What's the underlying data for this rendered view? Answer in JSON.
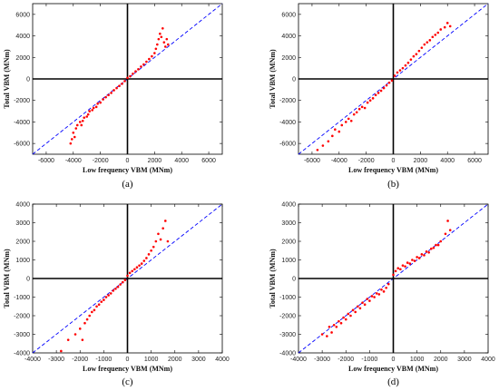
{
  "chart_data": [
    {
      "type": "scatter",
      "caption": "(a)",
      "xlabel": "Low frequency VBM (MNm)",
      "ylabel": "Total VBM (MNm)",
      "xlim": [
        -7000,
        7000
      ],
      "ylim": [
        -7000,
        7000
      ],
      "xticks": [
        -6000,
        -4000,
        -2000,
        0,
        2000,
        4000,
        6000
      ],
      "yticks": [
        -6000,
        -4000,
        -2000,
        0,
        2000,
        4000,
        6000
      ],
      "marker_color": "#ff0000",
      "reference_line": {
        "style": "dashed",
        "color": "#0000ff",
        "slope": 1
      },
      "axes_cross_color": "#000000",
      "series": [
        {
          "points": [
            [
              -4200,
              -6000
            ],
            [
              -4100,
              -5600
            ],
            [
              -4000,
              -5000
            ],
            [
              -3900,
              -5400
            ],
            [
              -3800,
              -4600
            ],
            [
              -3700,
              -4300
            ],
            [
              -3500,
              -4000
            ],
            [
              -3400,
              -4300
            ],
            [
              -3300,
              -3900
            ],
            [
              -3200,
              -3600
            ],
            [
              -3000,
              -3500
            ],
            [
              -2900,
              -3300
            ],
            [
              -2800,
              -3000
            ],
            [
              -2600,
              -2900
            ],
            [
              -2500,
              -2700
            ],
            [
              -2300,
              -2600
            ],
            [
              -2200,
              -2300
            ],
            [
              -2000,
              -2200
            ],
            [
              -1800,
              -1900
            ],
            [
              -1600,
              -1700
            ],
            [
              -1400,
              -1500
            ],
            [
              -1200,
              -1300
            ],
            [
              -1000,
              -1050
            ],
            [
              -800,
              -850
            ],
            [
              -600,
              -650
            ],
            [
              -400,
              -450
            ],
            [
              -200,
              -200
            ],
            [
              0,
              100
            ],
            [
              200,
              250
            ],
            [
              400,
              480
            ],
            [
              600,
              700
            ],
            [
              800,
              900
            ],
            [
              1000,
              1150
            ],
            [
              1200,
              1350
            ],
            [
              1400,
              1600
            ],
            [
              1600,
              1850
            ],
            [
              1800,
              2100
            ],
            [
              2000,
              2400
            ],
            [
              2100,
              2800
            ],
            [
              2200,
              3200
            ],
            [
              2300,
              3700
            ],
            [
              2400,
              4200
            ],
            [
              2500,
              3900
            ],
            [
              2600,
              4700
            ],
            [
              2700,
              3400
            ],
            [
              2800,
              3000
            ],
            [
              2900,
              3700
            ],
            [
              3000,
              3200
            ]
          ]
        }
      ]
    },
    {
      "type": "scatter",
      "caption": "(b)",
      "xlabel": "Low frequency VBM (MNm)",
      "ylabel": "Total VBM (MNm)",
      "xlim": [
        -7000,
        7000
      ],
      "ylim": [
        -7000,
        7000
      ],
      "xticks": [
        -6000,
        -4000,
        -2000,
        0,
        2000,
        4000,
        6000
      ],
      "yticks": [
        -6000,
        -4000,
        -2000,
        0,
        2000,
        4000,
        6000
      ],
      "marker_color": "#ff0000",
      "reference_line": {
        "style": "dashed",
        "color": "#0000ff",
        "slope": 1
      },
      "axes_cross_color": "#000000",
      "series": [
        {
          "points": [
            [
              -5600,
              -6600
            ],
            [
              -5200,
              -6200
            ],
            [
              -4800,
              -5800
            ],
            [
              -4500,
              -5300
            ],
            [
              -4300,
              -4700
            ],
            [
              -4000,
              -4900
            ],
            [
              -3800,
              -4300
            ],
            [
              -3500,
              -4000
            ],
            [
              -3300,
              -3700
            ],
            [
              -3100,
              -3900
            ],
            [
              -2900,
              -3300
            ],
            [
              -2700,
              -3100
            ],
            [
              -2500,
              -2800
            ],
            [
              -2300,
              -2600
            ],
            [
              -2100,
              -2700
            ],
            [
              -1900,
              -2200
            ],
            [
              -1700,
              -2000
            ],
            [
              -1500,
              -1800
            ],
            [
              -1300,
              -1500
            ],
            [
              -1100,
              -1300
            ],
            [
              -900,
              -1100
            ],
            [
              -700,
              -850
            ],
            [
              -500,
              -600
            ],
            [
              -300,
              -350
            ],
            [
              -100,
              -150
            ],
            [
              100,
              300
            ],
            [
              300,
              600
            ],
            [
              500,
              800
            ],
            [
              700,
              1000
            ],
            [
              900,
              1250
            ],
            [
              1100,
              1500
            ],
            [
              1300,
              1800
            ],
            [
              1500,
              2100
            ],
            [
              1700,
              2300
            ],
            [
              1900,
              2600
            ],
            [
              2100,
              2900
            ],
            [
              2300,
              3200
            ],
            [
              2500,
              3400
            ],
            [
              2700,
              3600
            ],
            [
              2900,
              3900
            ],
            [
              3100,
              4100
            ],
            [
              3300,
              4300
            ],
            [
              3500,
              4600
            ],
            [
              3800,
              4800
            ],
            [
              4000,
              5200
            ],
            [
              4200,
              4900
            ]
          ]
        }
      ]
    },
    {
      "type": "scatter",
      "caption": "(c)",
      "xlabel": "Low frequency VBM (MNm)",
      "ylabel": "Total VBM (MNm)",
      "xlim": [
        -4000,
        4000
      ],
      "ylim": [
        -4000,
        4000
      ],
      "xticks": [
        -4000,
        -3000,
        -2000,
        -1000,
        0,
        1000,
        2000,
        3000,
        4000
      ],
      "yticks": [
        -4000,
        -3000,
        -2000,
        -1000,
        0,
        1000,
        2000,
        3000,
        4000
      ],
      "marker_color": "#ff0000",
      "reference_line": {
        "style": "dashed",
        "color": "#0000ff",
        "slope": 1
      },
      "axes_cross_color": "#000000",
      "series": [
        {
          "points": [
            [
              -2800,
              -3900
            ],
            [
              -2500,
              -3300
            ],
            [
              -2200,
              -3000
            ],
            [
              -2000,
              -2700
            ],
            [
              -1900,
              -3300
            ],
            [
              -1800,
              -2400
            ],
            [
              -1700,
              -2200
            ],
            [
              -1600,
              -2000
            ],
            [
              -1500,
              -1800
            ],
            [
              -1400,
              -1700
            ],
            [
              -1300,
              -1500
            ],
            [
              -1200,
              -1400
            ],
            [
              -1100,
              -1250
            ],
            [
              -1000,
              -1150
            ],
            [
              -900,
              -1000
            ],
            [
              -800,
              -900
            ],
            [
              -700,
              -800
            ],
            [
              -600,
              -650
            ],
            [
              -500,
              -550
            ],
            [
              -400,
              -450
            ],
            [
              -300,
              -320
            ],
            [
              -200,
              -200
            ],
            [
              -100,
              -80
            ],
            [
              0,
              150
            ],
            [
              100,
              300
            ],
            [
              200,
              400
            ],
            [
              300,
              500
            ],
            [
              400,
              600
            ],
            [
              500,
              700
            ],
            [
              600,
              800
            ],
            [
              700,
              950
            ],
            [
              800,
              1100
            ],
            [
              900,
              1300
            ],
            [
              1000,
              1500
            ],
            [
              1100,
              1700
            ],
            [
              1200,
              2000
            ],
            [
              1300,
              2400
            ],
            [
              1400,
              2100
            ],
            [
              1500,
              2700
            ],
            [
              1600,
              3100
            ],
            [
              1700,
              2000
            ]
          ]
        }
      ]
    },
    {
      "type": "scatter",
      "caption": "(d)",
      "xlabel": "Low frequency VBM (MNm)",
      "ylabel": "Total VBM (MNm)",
      "xlim": [
        -4000,
        4000
      ],
      "ylim": [
        -4000,
        4000
      ],
      "xticks": [
        -4000,
        -3000,
        -2000,
        -1000,
        0,
        1000,
        2000,
        3000,
        4000
      ],
      "yticks": [
        -4000,
        -3000,
        -2000,
        -1000,
        0,
        1000,
        2000,
        3000,
        4000
      ],
      "marker_color": "#ff0000",
      "reference_line": {
        "style": "dashed",
        "color": "#0000ff",
        "slope": 1
      },
      "axes_cross_color": "#000000",
      "series": [
        {
          "points": [
            [
              -3000,
              -3000
            ],
            [
              -2800,
              -3100
            ],
            [
              -2700,
              -2600
            ],
            [
              -2600,
              -2900
            ],
            [
              -2500,
              -2500
            ],
            [
              -2400,
              -2600
            ],
            [
              -2300,
              -2300
            ],
            [
              -2200,
              -2400
            ],
            [
              -2100,
              -2100
            ],
            [
              -2000,
              -2200
            ],
            [
              -1900,
              -1900
            ],
            [
              -1800,
              -2000
            ],
            [
              -1700,
              -1700
            ],
            [
              -1600,
              -1800
            ],
            [
              -1500,
              -1500
            ],
            [
              -1400,
              -1600
            ],
            [
              -1300,
              -1300
            ],
            [
              -1200,
              -1400
            ],
            [
              -1100,
              -1100
            ],
            [
              -1000,
              -1200
            ],
            [
              -900,
              -950
            ],
            [
              -800,
              -1000
            ],
            [
              -700,
              -800
            ],
            [
              -600,
              -850
            ],
            [
              -500,
              -600
            ],
            [
              -400,
              -700
            ],
            [
              -300,
              -500
            ],
            [
              -200,
              -300
            ],
            [
              0,
              200
            ],
            [
              100,
              400
            ],
            [
              200,
              550
            ],
            [
              300,
              500
            ],
            [
              400,
              700
            ],
            [
              500,
              650
            ],
            [
              600,
              850
            ],
            [
              700,
              800
            ],
            [
              800,
              1000
            ],
            [
              900,
              950
            ],
            [
              1000,
              1150
            ],
            [
              1100,
              1100
            ],
            [
              1200,
              1300
            ],
            [
              1300,
              1250
            ],
            [
              1400,
              1450
            ],
            [
              1500,
              1400
            ],
            [
              1600,
              1600
            ],
            [
              1700,
              1650
            ],
            [
              1800,
              1800
            ],
            [
              1900,
              1800
            ],
            [
              2000,
              2000
            ],
            [
              2200,
              2400
            ],
            [
              2300,
              3100
            ],
            [
              2400,
              2600
            ]
          ]
        }
      ]
    }
  ]
}
